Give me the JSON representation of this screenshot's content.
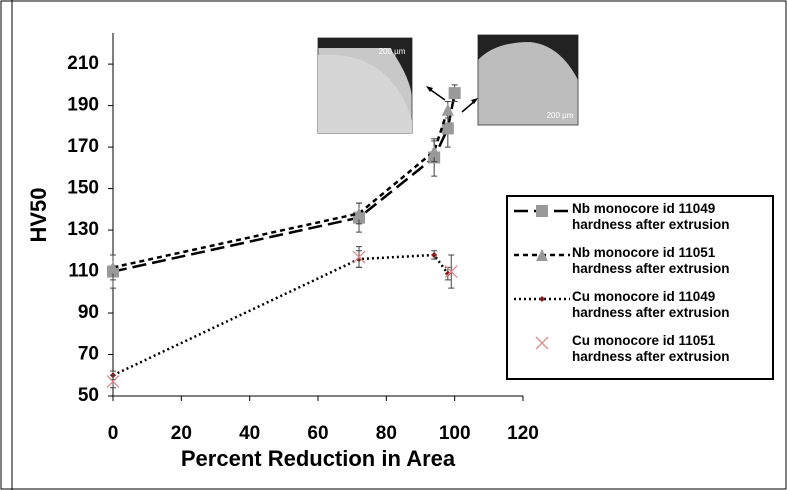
{
  "chart_data": {
    "type": "scatter",
    "x_label": "Percent Reduction in Area",
    "y_label": "HV50",
    "xlim": [
      0,
      120
    ],
    "xticks": [
      0,
      20,
      40,
      60,
      80,
      100,
      120
    ],
    "ylim": [
      50,
      225
    ],
    "yticks": [
      50,
      70,
      90,
      110,
      130,
      150,
      170,
      190,
      210
    ],
    "insets": [
      "200 µm",
      "200 µm"
    ],
    "series": [
      {
        "name": "Nb monocore id 11049 hardness after extrusion",
        "color": "#999999",
        "marker": "square",
        "line_color": "#000000",
        "dash": "14,6",
        "x": [
          0,
          72,
          94,
          98,
          100
        ],
        "values": [
          110,
          136,
          165,
          179,
          196
        ],
        "errors": [
          8,
          7,
          9,
          9,
          4
        ]
      },
      {
        "name": "Nb monocore id 11051 hardness after extrusion",
        "color": "#999999",
        "marker": "triangle",
        "line_color": "#000000",
        "dash": "5,4",
        "x": [
          0,
          72,
          94,
          98
        ],
        "values": [
          112,
          138,
          168,
          188
        ],
        "errors": [
          6,
          5,
          5,
          4
        ]
      },
      {
        "name": "Cu monocore id 11049 hardness after extrusion",
        "color": "#8b1a1a",
        "marker": "diamond",
        "line_color": "#000000",
        "dash": "2,3",
        "x": [
          0,
          72,
          94,
          98
        ],
        "values": [
          60,
          116,
          118,
          109
        ],
        "errors": [
          2,
          4,
          2,
          3
        ]
      },
      {
        "name": "Cu monocore id 11051 hardness after extrusion",
        "color": "#e08c8c",
        "marker": "x",
        "line_color": null,
        "dash": null,
        "x": [
          0,
          72,
          99
        ],
        "values": [
          57,
          117,
          110
        ],
        "errors": [
          3,
          5,
          8
        ]
      }
    ]
  }
}
